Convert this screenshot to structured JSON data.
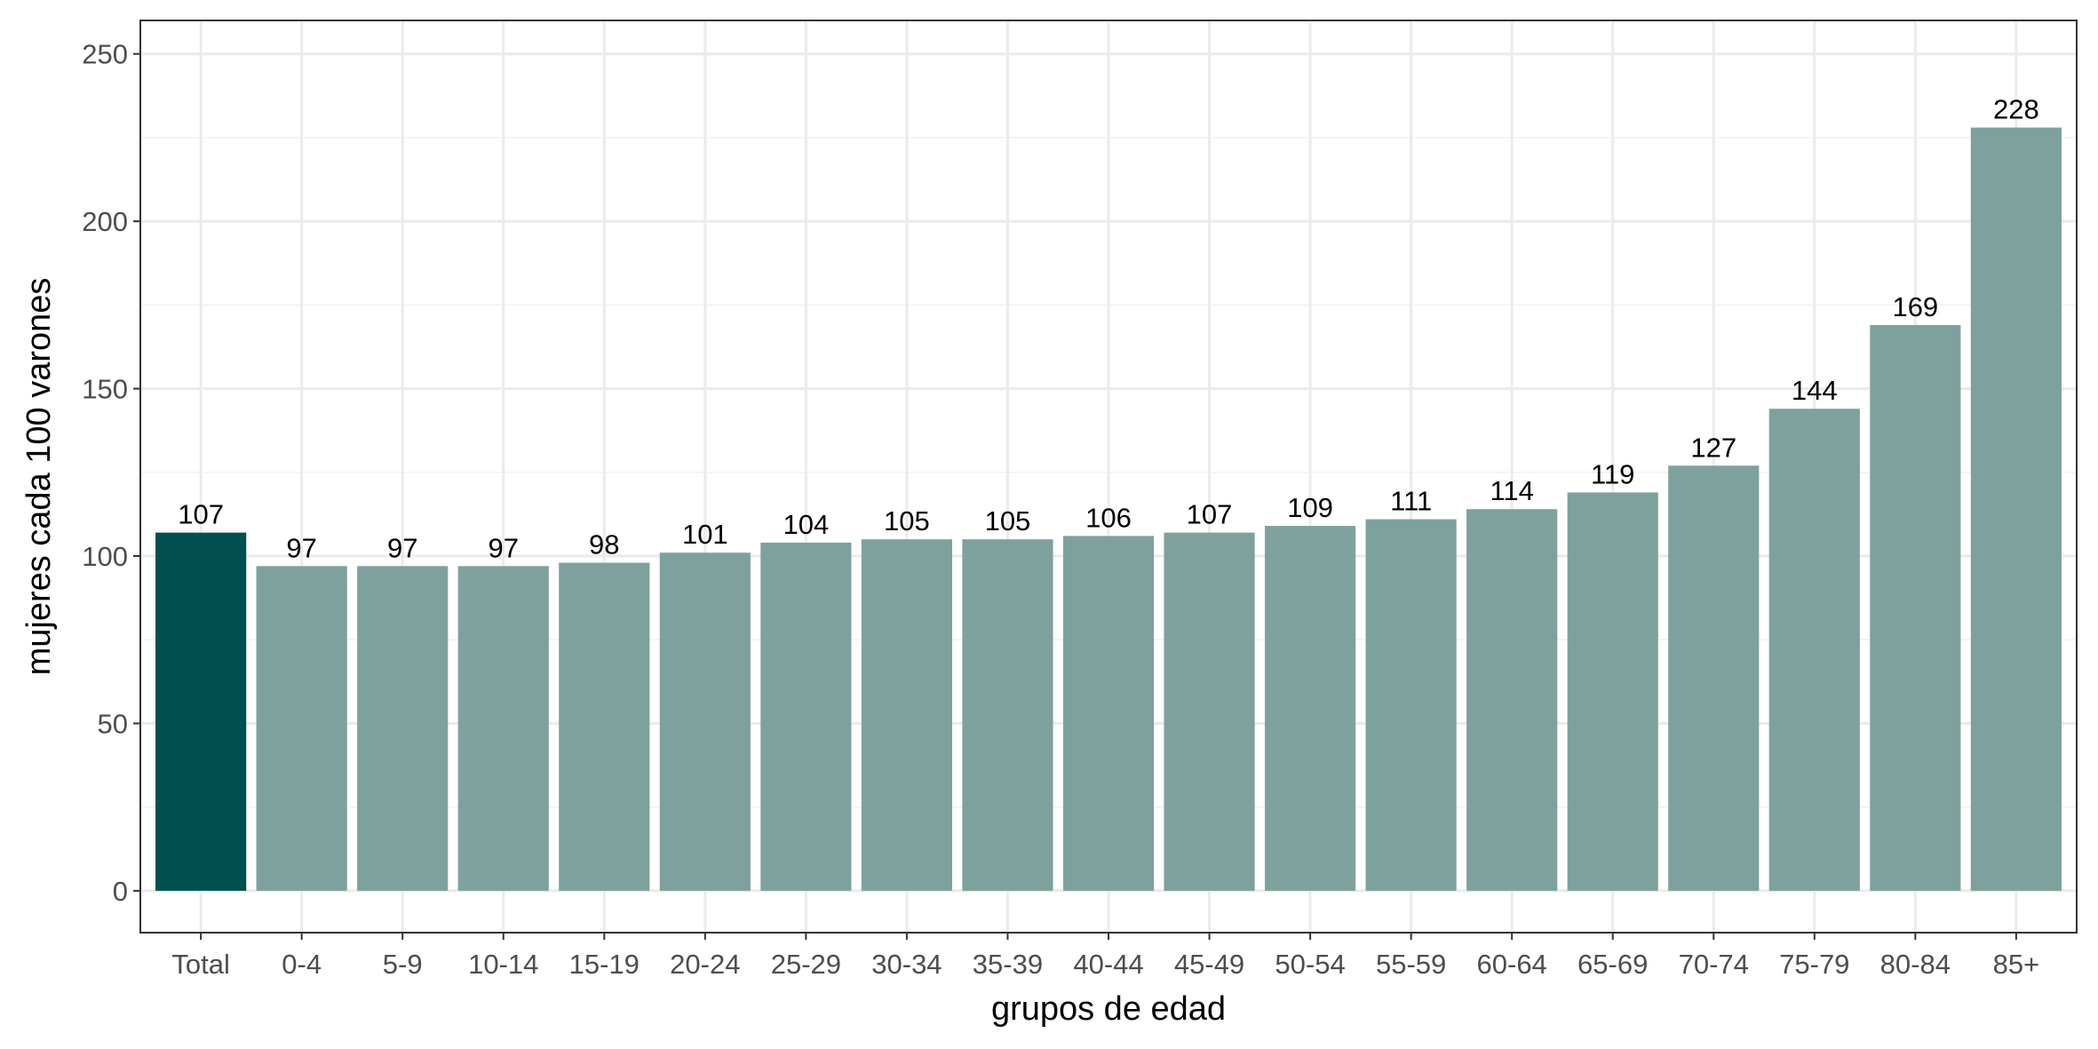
{
  "chart_data": {
    "type": "bar",
    "title": "",
    "xlabel": "grupos de edad",
    "ylabel": "mujeres cada 100 varones",
    "categories": [
      "Total",
      "0-4",
      "5-9",
      "10-14",
      "15-19",
      "20-24",
      "25-29",
      "30-34",
      "35-39",
      "40-44",
      "45-49",
      "50-54",
      "55-59",
      "60-64",
      "65-69",
      "70-74",
      "75-79",
      "80-84",
      "85+"
    ],
    "values": [
      107,
      97,
      97,
      97,
      98,
      101,
      104,
      105,
      105,
      106,
      107,
      109,
      111,
      114,
      119,
      127,
      144,
      169,
      228
    ],
    "data_labels": [
      "107",
      "97",
      "97",
      "97",
      "98",
      "101",
      "104",
      "105",
      "105",
      "106",
      "107",
      "109",
      "111",
      "114",
      "119",
      "127",
      "144",
      "169",
      "228"
    ],
    "ylim": [
      -12.5,
      260
    ],
    "yticks": [
      0,
      50,
      100,
      150,
      200,
      250
    ],
    "ytick_labels": [
      "0",
      "50",
      "100",
      "150",
      "200",
      "250"
    ],
    "grid": true,
    "legend": "none",
    "colors": {
      "highlight_bar": "#00514F",
      "bar": "#7FA19E",
      "grid_major": "#EBEBEB",
      "grid_minor": "#F2F2F2",
      "panel_border": "#333333",
      "tick_text": "#4D4D4D"
    },
    "highlight_category": "Total"
  }
}
